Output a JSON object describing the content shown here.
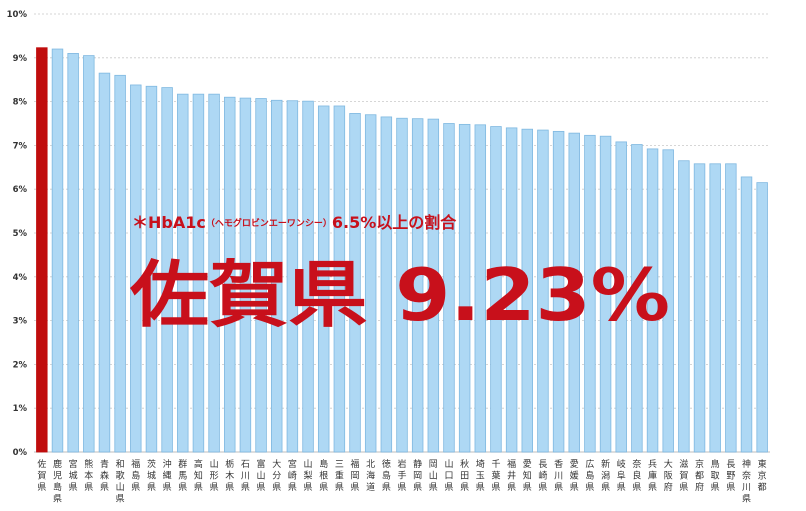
{
  "chart_data": {
    "type": "bar",
    "yticks": [
      "0%",
      "1%",
      "2%",
      "3%",
      "4%",
      "5%",
      "6%",
      "7%",
      "8%",
      "9%",
      "10%"
    ],
    "ylim": [
      0,
      10
    ],
    "grid": true,
    "categories": [
      "佐賀県",
      "鹿児島県",
      "宮城県",
      "熊本県",
      "青森県",
      "和歌山県",
      "福島県",
      "茨城県",
      "沖縄県",
      "群馬県",
      "高知県",
      "山形県",
      "栃木県",
      "石川県",
      "富山県",
      "大分県",
      "宮崎県",
      "山梨県",
      "島根県",
      "三重県",
      "福岡県",
      "北海道",
      "徳島県",
      "岩手県",
      "静岡県",
      "岡山県",
      "山口県",
      "秋田県",
      "埼玉県",
      "千葉県",
      "福井県",
      "愛知県",
      "長崎県",
      "香川県",
      "愛媛県",
      "広島県",
      "新潟県",
      "岐阜県",
      "奈良県",
      "兵庫県",
      "大阪府",
      "滋賀県",
      "京都府",
      "鳥取県",
      "長野県",
      "神奈川県",
      "東京都"
    ],
    "values": [
      9.23,
      9.2,
      9.1,
      9.05,
      8.65,
      8.6,
      8.38,
      8.35,
      8.32,
      8.17,
      8.17,
      8.17,
      8.1,
      8.08,
      8.07,
      8.03,
      8.02,
      8.01,
      7.9,
      7.9,
      7.73,
      7.7,
      7.65,
      7.62,
      7.61,
      7.6,
      7.5,
      7.48,
      7.47,
      7.43,
      7.4,
      7.37,
      7.35,
      7.32,
      7.28,
      7.23,
      7.21,
      7.08,
      7.02,
      6.92,
      6.9,
      6.65,
      6.58,
      6.58,
      6.58,
      6.28,
      6.15
    ],
    "highlight_index": 0,
    "colors": {
      "bar": "#aed8f4",
      "bar_stroke": "#7fb8e0",
      "highlight": "#c00d0d",
      "grid": "#c9c9c9",
      "text": "#c8101b"
    }
  },
  "annotation": {
    "note_prefix": "＊HbA1c",
    "note_small": "（ヘモグロビンエーワンシー）",
    "note_suffix": "6.5%以上の割合",
    "headline": "佐賀県 9.23%"
  }
}
